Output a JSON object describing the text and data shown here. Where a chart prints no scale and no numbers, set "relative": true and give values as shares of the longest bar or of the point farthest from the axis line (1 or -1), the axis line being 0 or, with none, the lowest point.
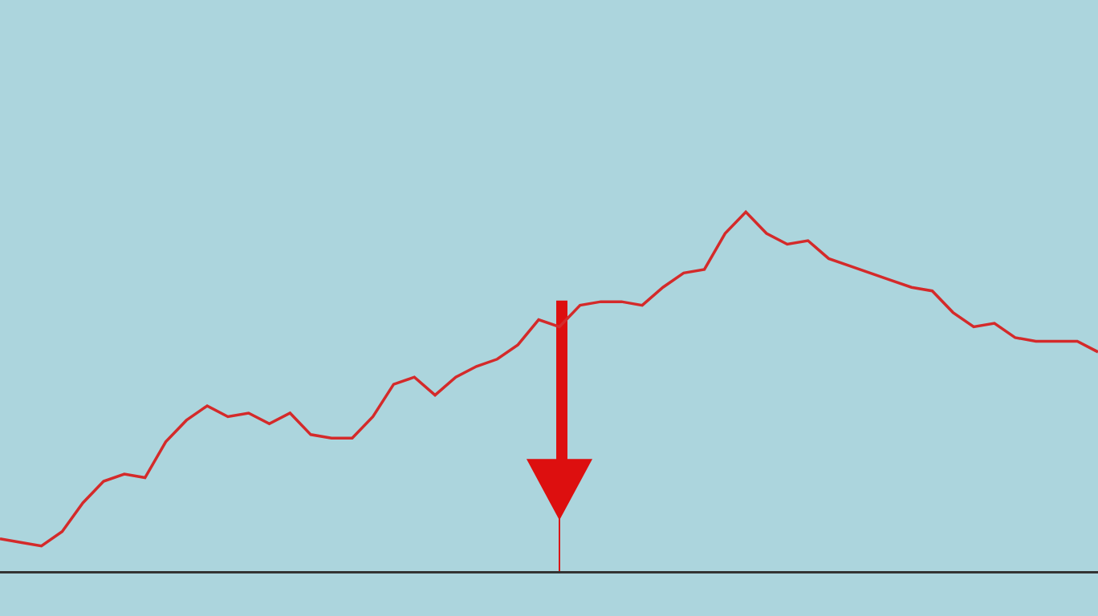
{
  "chart_data": {
    "type": "line",
    "relative": true,
    "grid": false,
    "marker": "none",
    "line_style": "solid",
    "categories": [
      null,
      null,
      null,
      null,
      null,
      null,
      null,
      null,
      null,
      null,
      null,
      null,
      null,
      null,
      null,
      null,
      null,
      null,
      null,
      null,
      null,
      null,
      null,
      null,
      null,
      null,
      null,
      null,
      null,
      null,
      null,
      null,
      null,
      null,
      null,
      null,
      null,
      null,
      null,
      null,
      null,
      null,
      null,
      null,
      null,
      null,
      null,
      null,
      null,
      null,
      null,
      null,
      null,
      null
    ],
    "series": [
      {
        "color": "#d42a2a",
        "values": [
          0.09,
          0.08,
          0.07,
          0.11,
          0.19,
          0.25,
          0.27,
          0.26,
          0.36,
          0.42,
          0.46,
          0.43,
          0.44,
          0.41,
          0.44,
          0.38,
          0.37,
          0.37,
          0.43,
          0.52,
          0.54,
          0.49,
          0.54,
          0.57,
          0.59,
          0.63,
          0.7,
          0.68,
          0.74,
          0.75,
          0.75,
          0.74,
          0.79,
          0.83,
          0.84,
          0.94,
          1,
          0.94,
          0.91,
          0.92,
          0.87,
          0.85,
          0.83,
          0.81,
          0.79,
          0.78,
          0.72,
          0.68,
          0.69,
          0.65,
          0.64,
          0.64,
          0.64,
          0.61
        ]
      }
    ]
  }
}
